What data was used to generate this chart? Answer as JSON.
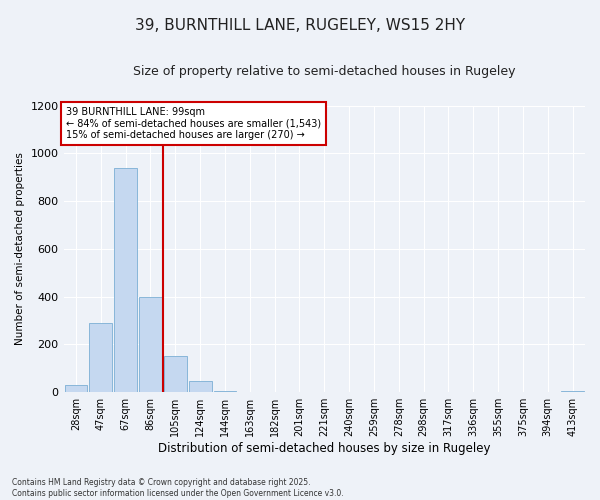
{
  "title1": "39, BURNTHILL LANE, RUGELEY, WS15 2HY",
  "title2": "Size of property relative to semi-detached houses in Rugeley",
  "xlabel": "Distribution of semi-detached houses by size in Rugeley",
  "ylabel": "Number of semi-detached properties",
  "bin_labels": [
    "28sqm",
    "47sqm",
    "67sqm",
    "86sqm",
    "105sqm",
    "124sqm",
    "144sqm",
    "163sqm",
    "182sqm",
    "201sqm",
    "221sqm",
    "240sqm",
    "259sqm",
    "278sqm",
    "298sqm",
    "317sqm",
    "336sqm",
    "355sqm",
    "375sqm",
    "394sqm",
    "413sqm"
  ],
  "bar_values": [
    30,
    290,
    940,
    400,
    150,
    45,
    5,
    0,
    0,
    0,
    0,
    0,
    0,
    0,
    0,
    0,
    0,
    0,
    0,
    0,
    5
  ],
  "bar_color": "#c5d8f0",
  "bar_edgecolor": "#7bafd4",
  "vline_color": "#cc0000",
  "annotation_title": "39 BURNTHILL LANE: 99sqm",
  "annotation_line1": "← 84% of semi-detached houses are smaller (1,543)",
  "annotation_line2": "15% of semi-detached houses are larger (270) →",
  "annotation_box_color": "#cc0000",
  "ylim": [
    0,
    1200
  ],
  "yticks": [
    0,
    200,
    400,
    600,
    800,
    1000,
    1200
  ],
  "footnote": "Contains HM Land Registry data © Crown copyright and database right 2025.\nContains public sector information licensed under the Open Government Licence v3.0.",
  "bg_color": "#eef2f8",
  "plot_bg_color": "#eef2f8",
  "title1_fontsize": 11,
  "title2_fontsize": 9
}
